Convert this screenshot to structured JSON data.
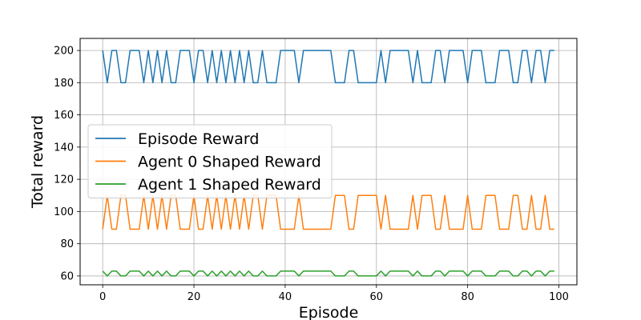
{
  "chart_data": {
    "type": "line",
    "title": "",
    "xlabel": "Episode",
    "ylabel": "Total reward",
    "xlim": [
      -4.95,
      103.95
    ],
    "ylim": [
      54.5,
      207.5
    ],
    "xticks": [
      0,
      20,
      40,
      60,
      80,
      100
    ],
    "yticks": [
      60,
      80,
      100,
      120,
      140,
      160,
      180,
      200
    ],
    "grid": true,
    "legend_position": "center-left",
    "x": [
      0,
      1,
      2,
      3,
      4,
      5,
      6,
      7,
      8,
      9,
      10,
      11,
      12,
      13,
      14,
      15,
      16,
      17,
      18,
      19,
      20,
      21,
      22,
      23,
      24,
      25,
      26,
      27,
      28,
      29,
      30,
      31,
      32,
      33,
      34,
      35,
      36,
      37,
      38,
      39,
      40,
      41,
      42,
      43,
      44,
      45,
      46,
      47,
      48,
      49,
      50,
      51,
      52,
      53,
      54,
      55,
      56,
      57,
      58,
      59,
      60,
      61,
      62,
      63,
      64,
      65,
      66,
      67,
      68,
      69,
      70,
      71,
      72,
      73,
      74,
      75,
      76,
      77,
      78,
      79,
      80,
      81,
      82,
      83,
      84,
      85,
      86,
      87,
      88,
      89,
      90,
      91,
      92,
      93,
      94,
      95,
      96,
      97,
      98,
      99
    ],
    "series": [
      {
        "name": "Episode Reward",
        "color": "#1f77b4",
        "values": [
          200,
          180,
          200,
          200,
          180,
          180,
          200,
          200,
          200,
          180,
          200,
          180,
          200,
          180,
          200,
          180,
          180,
          200,
          200,
          200,
          180,
          200,
          200,
          180,
          200,
          180,
          200,
          180,
          200,
          180,
          200,
          180,
          200,
          180,
          180,
          200,
          180,
          180,
          180,
          200,
          200,
          200,
          200,
          180,
          200,
          200,
          200,
          200,
          200,
          200,
          200,
          180,
          180,
          180,
          200,
          200,
          180,
          180,
          180,
          180,
          180,
          200,
          180,
          200,
          200,
          200,
          200,
          200,
          180,
          200,
          180,
          180,
          180,
          200,
          200,
          180,
          200,
          200,
          200,
          200,
          180,
          200,
          200,
          200,
          180,
          180,
          180,
          200,
          200,
          200,
          180,
          180,
          200,
          200,
          180,
          200,
          200,
          180,
          200,
          200
        ]
      },
      {
        "name": "Agent 0 Shaped Reward",
        "color": "#ff7f0e",
        "values": [
          89,
          110,
          89,
          89,
          110,
          110,
          89,
          89,
          89,
          110,
          89,
          110,
          89,
          110,
          89,
          110,
          110,
          89,
          89,
          89,
          110,
          89,
          89,
          110,
          89,
          110,
          89,
          110,
          89,
          110,
          89,
          110,
          89,
          110,
          110,
          89,
          110,
          110,
          110,
          89,
          89,
          89,
          89,
          110,
          89,
          89,
          89,
          89,
          89,
          89,
          89,
          110,
          110,
          110,
          89,
          89,
          110,
          110,
          110,
          110,
          110,
          89,
          110,
          89,
          89,
          89,
          89,
          89,
          110,
          89,
          110,
          110,
          110,
          89,
          89,
          110,
          89,
          89,
          89,
          89,
          110,
          89,
          89,
          89,
          110,
          110,
          110,
          89,
          89,
          89,
          110,
          110,
          89,
          89,
          110,
          89,
          89,
          110,
          89,
          89
        ]
      },
      {
        "name": "Agent 1 Shaped Reward",
        "color": "#2ca02c",
        "values": [
          63,
          60,
          63,
          63,
          60,
          60,
          63,
          63,
          63,
          60,
          63,
          60,
          63,
          60,
          63,
          60,
          60,
          63,
          63,
          63,
          60,
          63,
          63,
          60,
          63,
          60,
          63,
          60,
          63,
          60,
          63,
          60,
          63,
          60,
          60,
          63,
          60,
          60,
          60,
          63,
          63,
          63,
          63,
          60,
          63,
          63,
          63,
          63,
          63,
          63,
          63,
          60,
          60,
          60,
          63,
          63,
          60,
          60,
          60,
          60,
          60,
          63,
          60,
          63,
          63,
          63,
          63,
          63,
          60,
          63,
          60,
          60,
          60,
          63,
          63,
          60,
          63,
          63,
          63,
          63,
          60,
          63,
          63,
          63,
          60,
          60,
          60,
          63,
          63,
          63,
          60,
          60,
          63,
          63,
          60,
          63,
          63,
          60,
          63,
          63
        ]
      }
    ]
  }
}
